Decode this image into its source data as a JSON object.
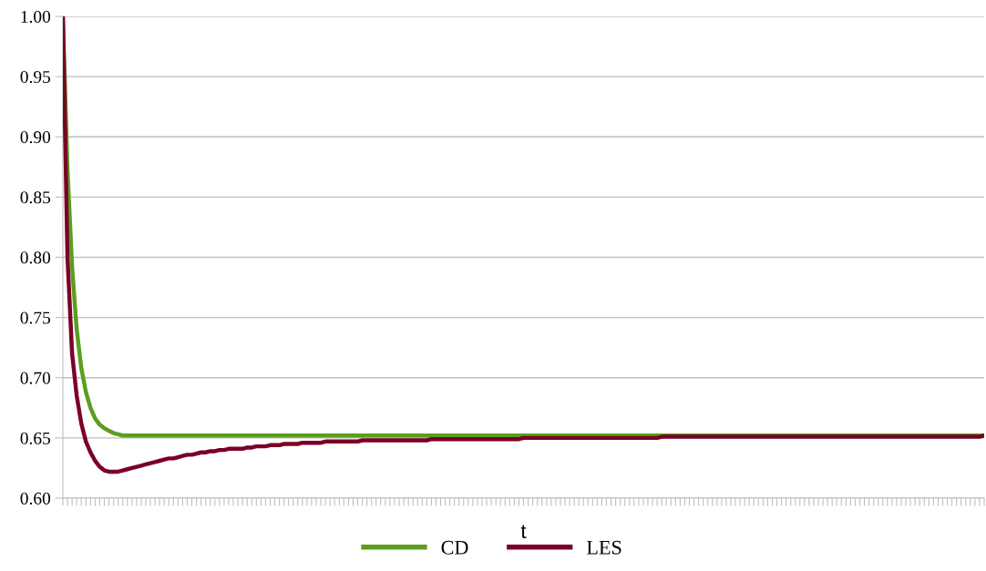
{
  "chart_data": {
    "type": "line",
    "xlabel": "t",
    "categories": [
      null,
      null,
      null,
      null,
      null,
      null,
      null,
      null,
      null,
      null,
      null,
      null,
      null,
      null,
      null,
      null,
      null,
      null,
      null,
      null,
      null,
      null,
      null,
      null,
      null,
      null,
      null,
      null,
      null,
      null,
      null,
      null,
      null,
      null,
      null,
      null,
      null,
      null,
      null,
      null,
      null,
      null,
      null,
      null,
      null,
      null,
      null,
      null,
      null,
      null,
      null,
      null,
      null,
      null,
      null,
      null,
      null,
      null,
      null,
      null,
      null,
      null,
      null,
      null,
      null,
      null,
      null,
      null,
      null,
      null,
      null,
      null,
      null,
      null,
      null,
      null,
      null,
      null,
      null,
      null,
      null,
      null,
      null,
      null,
      null,
      null,
      null,
      null,
      null,
      null,
      null,
      null,
      null,
      null,
      null,
      null,
      null,
      null,
      null,
      null,
      null,
      null,
      null,
      null,
      null,
      null,
      null,
      null,
      null,
      null,
      null,
      null,
      null,
      null,
      null,
      null,
      null,
      null,
      null,
      null,
      null,
      null,
      null,
      null,
      null,
      null,
      null,
      null,
      null,
      null,
      null,
      null,
      null,
      null,
      null,
      null,
      null,
      null,
      null,
      null,
      null,
      null,
      null,
      null,
      null,
      null,
      null,
      null,
      null,
      null,
      null,
      null,
      null,
      null,
      null,
      null,
      null,
      null,
      null,
      null,
      null,
      null,
      null,
      null,
      null,
      null,
      null,
      null,
      null,
      null,
      null,
      null,
      null,
      null,
      null,
      null,
      null,
      null,
      null,
      null,
      null,
      null,
      null,
      null,
      null,
      null,
      null,
      null,
      null,
      null,
      null,
      null,
      null,
      null,
      null,
      null,
      null,
      null,
      null,
      null,
      null
    ],
    "series": [
      {
        "name": "CD",
        "color": "#5b9e1e",
        "values": [
          1.0,
          0.873,
          0.792,
          0.74,
          0.708,
          0.688,
          0.675,
          0.666,
          0.661,
          0.658,
          0.656,
          0.654,
          0.653,
          0.652,
          0.652,
          0.652,
          0.652,
          0.652,
          0.652,
          0.652,
          0.652,
          0.652,
          0.652,
          0.652,
          0.652,
          0.652,
          0.652,
          0.652,
          0.652,
          0.652,
          0.652,
          0.652,
          0.652,
          0.652,
          0.652,
          0.652,
          0.652,
          0.652,
          0.652,
          0.652,
          0.652,
          0.652,
          0.652,
          0.652,
          0.652,
          0.652,
          0.652,
          0.652,
          0.652,
          0.652,
          0.652,
          0.652,
          0.652,
          0.652,
          0.652,
          0.652,
          0.652,
          0.652,
          0.652,
          0.652,
          0.652,
          0.652,
          0.652,
          0.652,
          0.652,
          0.652,
          0.652,
          0.652,
          0.652,
          0.652,
          0.652,
          0.652,
          0.652,
          0.652,
          0.652,
          0.652,
          0.652,
          0.652,
          0.652,
          0.652,
          0.652,
          0.652,
          0.652,
          0.652,
          0.652,
          0.652,
          0.652,
          0.652,
          0.652,
          0.652,
          0.652,
          0.652,
          0.652,
          0.652,
          0.652,
          0.652,
          0.652,
          0.652,
          0.652,
          0.652,
          0.652,
          0.652,
          0.652,
          0.652,
          0.652,
          0.652,
          0.652,
          0.652,
          0.652,
          0.652,
          0.652,
          0.652,
          0.652,
          0.652,
          0.652,
          0.652,
          0.652,
          0.652,
          0.652,
          0.652,
          0.652,
          0.652,
          0.652,
          0.652,
          0.652,
          0.652,
          0.652,
          0.652,
          0.652,
          0.652,
          0.652,
          0.652,
          0.652,
          0.652,
          0.652,
          0.652,
          0.652,
          0.652,
          0.652,
          0.652,
          0.652,
          0.652,
          0.652,
          0.652,
          0.652,
          0.652,
          0.652,
          0.652,
          0.652,
          0.652,
          0.652,
          0.652,
          0.652,
          0.652,
          0.652,
          0.652,
          0.652,
          0.652,
          0.652,
          0.652,
          0.652,
          0.652,
          0.652,
          0.652,
          0.652,
          0.652,
          0.652,
          0.652,
          0.652,
          0.652,
          0.652,
          0.652,
          0.652,
          0.652,
          0.652,
          0.652,
          0.652,
          0.652,
          0.652,
          0.652,
          0.652,
          0.652,
          0.652,
          0.652,
          0.652,
          0.652,
          0.652,
          0.652,
          0.652,
          0.652,
          0.652,
          0.652,
          0.652,
          0.652,
          0.652,
          0.652,
          0.652,
          0.652,
          0.652,
          0.652,
          0.652
        ]
      },
      {
        "name": "LES",
        "color": "#7a0025",
        "values": [
          1.0,
          0.8,
          0.72,
          0.685,
          0.662,
          0.647,
          0.638,
          0.631,
          0.626,
          0.623,
          0.622,
          0.622,
          0.622,
          0.623,
          0.624,
          0.625,
          0.626,
          0.627,
          0.628,
          0.629,
          0.63,
          0.631,
          0.632,
          0.633,
          0.633,
          0.634,
          0.635,
          0.636,
          0.636,
          0.637,
          0.638,
          0.638,
          0.639,
          0.639,
          0.64,
          0.64,
          0.641,
          0.641,
          0.641,
          0.641,
          0.642,
          0.642,
          0.643,
          0.643,
          0.643,
          0.644,
          0.644,
          0.644,
          0.645,
          0.645,
          0.645,
          0.645,
          0.646,
          0.646,
          0.646,
          0.646,
          0.646,
          0.647,
          0.647,
          0.647,
          0.647,
          0.647,
          0.647,
          0.647,
          0.647,
          0.648,
          0.648,
          0.648,
          0.648,
          0.648,
          0.648,
          0.648,
          0.648,
          0.648,
          0.648,
          0.648,
          0.648,
          0.648,
          0.648,
          0.648,
          0.649,
          0.649,
          0.649,
          0.649,
          0.649,
          0.649,
          0.649,
          0.649,
          0.649,
          0.649,
          0.649,
          0.649,
          0.649,
          0.649,
          0.649,
          0.649,
          0.649,
          0.649,
          0.649,
          0.649,
          0.65,
          0.65,
          0.65,
          0.65,
          0.65,
          0.65,
          0.65,
          0.65,
          0.65,
          0.65,
          0.65,
          0.65,
          0.65,
          0.65,
          0.65,
          0.65,
          0.65,
          0.65,
          0.65,
          0.65,
          0.65,
          0.65,
          0.65,
          0.65,
          0.65,
          0.65,
          0.65,
          0.65,
          0.65,
          0.65,
          0.651,
          0.651,
          0.651,
          0.651,
          0.651,
          0.651,
          0.651,
          0.651,
          0.651,
          0.651,
          0.651,
          0.651,
          0.651,
          0.651,
          0.651,
          0.651,
          0.651,
          0.651,
          0.651,
          0.651,
          0.651,
          0.651,
          0.651,
          0.651,
          0.651,
          0.651,
          0.651,
          0.651,
          0.651,
          0.651,
          0.651,
          0.651,
          0.651,
          0.651,
          0.651,
          0.651,
          0.651,
          0.651,
          0.651,
          0.651,
          0.651,
          0.651,
          0.651,
          0.651,
          0.651,
          0.651,
          0.651,
          0.651,
          0.651,
          0.651,
          0.651,
          0.651,
          0.651,
          0.651,
          0.651,
          0.651,
          0.651,
          0.651,
          0.651,
          0.651,
          0.651,
          0.651,
          0.651,
          0.651,
          0.651,
          0.651,
          0.651,
          0.651,
          0.651,
          0.651,
          0.652
        ]
      }
    ],
    "ylim": [
      0.6,
      1.0
    ],
    "yticks": [
      {
        "value": 0.6,
        "label": "0.60"
      },
      {
        "value": 0.65,
        "label": "0.65"
      },
      {
        "value": 0.7,
        "label": "0.70"
      },
      {
        "value": 0.75,
        "label": "0.75"
      },
      {
        "value": 0.8,
        "label": "0.80"
      },
      {
        "value": 0.85,
        "label": "0.85"
      },
      {
        "value": 0.9,
        "label": "0.90"
      },
      {
        "value": 0.95,
        "label": "0.95"
      },
      {
        "value": 1.0,
        "label": "1.00"
      }
    ],
    "grid": "y",
    "legend": "bottom",
    "marker": "none",
    "line_style": "solid",
    "tick_labels": "y"
  }
}
